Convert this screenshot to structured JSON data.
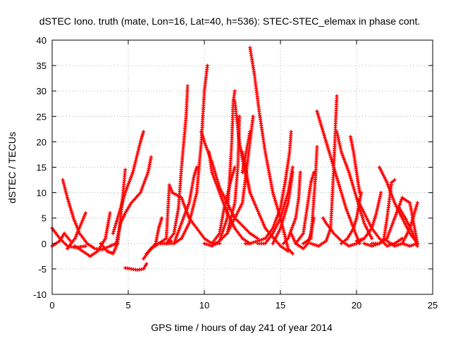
{
  "chart_data": {
    "type": "scatter",
    "title": "dSTEC Iono. truth (mate, Lon=16, Lat=40, h=536): STEC-STEC_elemax in phase cont.",
    "xlabel": "GPS time / hours of day 241 of year 2014",
    "ylabel": "dSTEC  / TECUs",
    "xlim": [
      0,
      25
    ],
    "ylim": [
      -10,
      40
    ],
    "xticks": [
      "0",
      "5",
      "10",
      "15",
      "20",
      "25"
    ],
    "yticks": [
      "-10",
      "-5",
      "0",
      "5",
      "10",
      "15",
      "20",
      "25",
      "30",
      "35",
      "40"
    ],
    "grid": true,
    "marker": "+",
    "color": "#ff0000",
    "series": [
      {
        "points": [
          [
            0.0,
            3.0
          ],
          [
            0.5,
            1.0
          ],
          [
            1.0,
            -0.5
          ],
          [
            1.5,
            -0.8
          ],
          [
            2.2,
            -0.5
          ]
        ]
      },
      {
        "points": [
          [
            0.0,
            -0.5
          ],
          [
            0.5,
            0.5
          ],
          [
            0.8,
            2.0
          ],
          [
            1.2,
            0.5
          ]
        ]
      },
      {
        "points": [
          [
            0.7,
            12.5
          ],
          [
            1.0,
            9.0
          ],
          [
            1.4,
            5.0
          ],
          [
            1.8,
            2.0
          ],
          [
            2.3,
            0.0
          ],
          [
            2.8,
            -1.0
          ],
          [
            3.3,
            -1.2
          ],
          [
            3.8,
            -0.5
          ],
          [
            4.2,
            0.0
          ]
        ]
      },
      {
        "points": [
          [
            1.0,
            -1.0
          ],
          [
            1.5,
            1.0
          ],
          [
            2.2,
            6.0
          ]
        ]
      },
      {
        "points": [
          [
            1.5,
            -0.5
          ],
          [
            2.0,
            -1.5
          ],
          [
            2.5,
            -2.5
          ],
          [
            3.0,
            -1.5
          ],
          [
            3.5,
            1.0
          ],
          [
            3.8,
            6.0
          ]
        ]
      },
      {
        "points": [
          [
            3.2,
            0.0
          ],
          [
            3.6,
            -1.5
          ],
          [
            4.0,
            -2.0
          ],
          [
            4.3,
            0.0
          ],
          [
            4.5,
            5.0
          ],
          [
            4.8,
            14.5
          ]
        ]
      },
      {
        "points": [
          [
            4.0,
            2.0
          ],
          [
            4.3,
            5.0
          ],
          [
            4.8,
            10.0
          ],
          [
            5.3,
            14.0
          ],
          [
            5.8,
            20.0
          ],
          [
            6.0,
            22.0
          ]
        ]
      },
      {
        "points": [
          [
            4.2,
            0.0
          ],
          [
            4.5,
            4.0
          ],
          [
            4.8,
            6.0
          ],
          [
            5.2,
            8.0
          ],
          [
            5.8,
            10.0
          ],
          [
            6.3,
            14.0
          ],
          [
            6.5,
            17.0
          ]
        ]
      },
      {
        "points": [
          [
            4.8,
            -4.8
          ],
          [
            5.2,
            -5.0
          ],
          [
            5.6,
            -5.2
          ],
          [
            6.0,
            -5.0
          ],
          [
            6.2,
            -4.0
          ]
        ]
      },
      {
        "points": [
          [
            6.0,
            -3.0
          ],
          [
            6.5,
            -1.0
          ],
          [
            7.0,
            0.0
          ],
          [
            7.5,
            0.0
          ],
          [
            7.8,
            0.5
          ]
        ]
      },
      {
        "points": [
          [
            6.2,
            -2.0
          ],
          [
            6.8,
            0.0
          ],
          [
            7.0,
            3.0
          ],
          [
            7.2,
            5.0
          ]
        ]
      },
      {
        "points": [
          [
            6.5,
            -1.0
          ],
          [
            7.0,
            0.0
          ],
          [
            7.5,
            1.0
          ],
          [
            7.7,
            11.5
          ],
          [
            7.9,
            10.0
          ],
          [
            8.5,
            9.0
          ],
          [
            9.0,
            5.0
          ],
          [
            10.0,
            1.0
          ],
          [
            10.5,
            0.0
          ],
          [
            11.0,
            0.0
          ]
        ]
      },
      {
        "points": [
          [
            7.0,
            0.0
          ],
          [
            7.5,
            0.0
          ],
          [
            8.0,
            2.0
          ],
          [
            8.3,
            7.0
          ],
          [
            8.5,
            15.0
          ],
          [
            8.8,
            25.0
          ],
          [
            8.9,
            31.0
          ]
        ]
      },
      {
        "points": [
          [
            7.5,
            0.0
          ],
          [
            8.0,
            0.0
          ],
          [
            8.5,
            4.0
          ],
          [
            9.0,
            8.0
          ],
          [
            9.3,
            13.0
          ],
          [
            9.5,
            15.0
          ]
        ]
      },
      {
        "points": [
          [
            8.0,
            0.0
          ],
          [
            8.5,
            1.0
          ],
          [
            9.0,
            4.0
          ],
          [
            9.5,
            10.0
          ],
          [
            9.8,
            20.0
          ],
          [
            10.0,
            30.0
          ],
          [
            10.2,
            35.0
          ]
        ]
      },
      {
        "points": [
          [
            9.8,
            22.0
          ],
          [
            10.0,
            20.0
          ],
          [
            10.5,
            16.0
          ],
          [
            11.0,
            11.0
          ],
          [
            12.0,
            5.0
          ],
          [
            13.0,
            2.0
          ],
          [
            13.5,
            1.0
          ]
        ]
      },
      {
        "points": [
          [
            10.3,
            18.0
          ],
          [
            10.5,
            14.0
          ],
          [
            11.0,
            10.0
          ],
          [
            11.5,
            6.0
          ],
          [
            12.0,
            3.0
          ],
          [
            12.5,
            1.0
          ],
          [
            13.0,
            0.0
          ]
        ]
      },
      {
        "points": [
          [
            10.0,
            0.0
          ],
          [
            10.5,
            -0.5
          ],
          [
            11.0,
            0.5
          ],
          [
            11.5,
            5.0
          ],
          [
            11.8,
            20.0
          ],
          [
            11.9,
            28.0
          ],
          [
            12.0,
            30.0
          ]
        ]
      },
      {
        "points": [
          [
            10.5,
            0.0
          ],
          [
            11.0,
            2.0
          ],
          [
            11.3,
            7.0
          ],
          [
            11.8,
            13.0
          ],
          [
            12.0,
            15.0
          ]
        ]
      },
      {
        "points": [
          [
            11.5,
            2.0
          ],
          [
            12.0,
            8.0
          ],
          [
            12.2,
            15.0
          ],
          [
            12.3,
            25.0
          ]
        ]
      },
      {
        "points": [
          [
            11.0,
            0.5
          ],
          [
            11.5,
            2.0
          ],
          [
            12.0,
            5.0
          ],
          [
            12.5,
            8.0
          ],
          [
            13.0,
            20.0
          ],
          [
            13.2,
            25.0
          ]
        ]
      },
      {
        "points": [
          [
            12.0,
            28.0
          ],
          [
            12.3,
            20.0
          ],
          [
            12.6,
            15.0
          ],
          [
            13.0,
            10.0
          ],
          [
            14.0,
            3.0
          ],
          [
            15.0,
            -0.5
          ],
          [
            15.5,
            -1.5
          ]
        ]
      },
      {
        "points": [
          [
            12.5,
            18.0
          ],
          [
            12.7,
            15.0
          ],
          [
            13.0,
            10.0
          ]
        ]
      },
      {
        "points": [
          [
            12.5,
            14.0
          ],
          [
            13.0,
            22.0
          ]
        ]
      },
      {
        "points": [
          [
            13.0,
            38.5
          ],
          [
            13.3,
            33.0
          ],
          [
            13.6,
            26.0
          ],
          [
            14.0,
            18.0
          ],
          [
            14.5,
            10.0
          ],
          [
            15.0,
            5.0
          ],
          [
            15.5,
            -1.0
          ],
          [
            15.8,
            -2.0
          ]
        ]
      },
      {
        "points": [
          [
            12.7,
            0.0
          ],
          [
            13.0,
            0.0
          ],
          [
            13.5,
            0.5
          ],
          [
            14.0,
            1.0
          ],
          [
            14.5,
            3.0
          ],
          [
            15.0,
            7.0
          ],
          [
            15.3,
            12.0
          ],
          [
            15.6,
            18.0
          ],
          [
            15.7,
            22.0
          ]
        ]
      },
      {
        "points": [
          [
            13.5,
            0.0
          ],
          [
            14.0,
            0.0
          ],
          [
            14.5,
            2.0
          ],
          [
            15.0,
            5.0
          ],
          [
            15.5,
            10.0
          ],
          [
            15.8,
            15.0
          ]
        ]
      },
      {
        "points": [
          [
            14.5,
            0.0
          ],
          [
            15.0,
            3.0
          ],
          [
            15.5,
            8.0
          ],
          [
            15.8,
            14.0
          ]
        ]
      },
      {
        "points": [
          [
            15.2,
            0.0
          ],
          [
            15.5,
            1.0
          ],
          [
            16.0,
            5.0
          ],
          [
            16.2,
            9.0
          ],
          [
            16.3,
            14.0
          ]
        ]
      },
      {
        "points": [
          [
            15.7,
            2.0
          ],
          [
            16.0,
            0.0
          ],
          [
            16.5,
            -1.0
          ],
          [
            16.8,
            0.0
          ],
          [
            17.0,
            2.0
          ],
          [
            17.2,
            5.0
          ]
        ]
      },
      {
        "points": [
          [
            16.0,
            0.0
          ],
          [
            16.5,
            2.0
          ],
          [
            16.8,
            8.0
          ],
          [
            17.0,
            12.0
          ],
          [
            17.2,
            14.0
          ]
        ]
      },
      {
        "points": [
          [
            16.5,
            0.0
          ],
          [
            17.0,
            1.0
          ],
          [
            17.3,
            13.0
          ],
          [
            17.4,
            19.0
          ]
        ]
      },
      {
        "points": [
          [
            17.4,
            26.0
          ],
          [
            17.8,
            22.0
          ],
          [
            18.2,
            18.0
          ],
          [
            18.8,
            12.0
          ],
          [
            19.3,
            7.0
          ],
          [
            19.8,
            3.0
          ],
          [
            20.2,
            0.0
          ]
        ]
      },
      {
        "points": [
          [
            17.0,
            0.0
          ],
          [
            17.5,
            -0.5
          ],
          [
            18.0,
            0.5
          ],
          [
            18.3,
            3.0
          ],
          [
            18.5,
            15.0
          ],
          [
            18.7,
            29.0
          ]
        ]
      },
      {
        "points": [
          [
            18.7,
            22.0
          ],
          [
            19.0,
            18.0
          ],
          [
            19.5,
            14.0
          ],
          [
            20.0,
            9.0
          ],
          [
            20.5,
            4.0
          ],
          [
            21.0,
            1.0
          ]
        ]
      },
      {
        "points": [
          [
            17.8,
            5.0
          ],
          [
            18.0,
            4.0
          ],
          [
            18.5,
            2.0
          ],
          [
            19.0,
            0.5
          ],
          [
            19.5,
            -0.5
          ],
          [
            20.0,
            0.0
          ],
          [
            20.5,
            1.0
          ]
        ]
      },
      {
        "points": [
          [
            19.0,
            0.0
          ],
          [
            19.4,
            1.0
          ],
          [
            19.8,
            3.0
          ],
          [
            20.0,
            5.0
          ],
          [
            20.3,
            10.0
          ]
        ]
      },
      {
        "points": [
          [
            19.6,
            21.0
          ],
          [
            19.8,
            18.0
          ],
          [
            20.0,
            14.0
          ],
          [
            20.2,
            10.0
          ]
        ]
      },
      {
        "points": [
          [
            20.0,
            0.5
          ],
          [
            20.5,
            1.0
          ],
          [
            21.0,
            3.0
          ],
          [
            21.3,
            6.0
          ],
          [
            21.6,
            10.0
          ]
        ]
      },
      {
        "points": [
          [
            20.0,
            9.0
          ],
          [
            20.5,
            6.0
          ],
          [
            21.0,
            3.0
          ],
          [
            21.5,
            1.0
          ],
          [
            22.0,
            -0.5
          ],
          [
            22.5,
            0.0
          ],
          [
            23.0,
            1.0
          ]
        ]
      },
      {
        "points": [
          [
            20.5,
            0.0
          ],
          [
            21.0,
            -0.5
          ],
          [
            21.5,
            0.0
          ],
          [
            21.8,
            1.0
          ],
          [
            22.0,
            5.0
          ],
          [
            22.3,
            12.0
          ],
          [
            22.5,
            12.5
          ]
        ]
      },
      {
        "points": [
          [
            21.5,
            15.0
          ],
          [
            22.0,
            12.0
          ],
          [
            22.5,
            8.0
          ],
          [
            23.0,
            5.0
          ],
          [
            23.5,
            2.0
          ],
          [
            24.0,
            0.0
          ]
        ]
      },
      {
        "points": [
          [
            21.0,
            0.0
          ],
          [
            21.5,
            0.0
          ],
          [
            22.0,
            1.0
          ],
          [
            22.5,
            5.0
          ],
          [
            23.0,
            9.0
          ],
          [
            23.5,
            8.0
          ],
          [
            24.0,
            0.0
          ]
        ]
      },
      {
        "points": [
          [
            22.0,
            0.5
          ],
          [
            22.5,
            -0.5
          ],
          [
            23.0,
            0.0
          ],
          [
            23.5,
            3.0
          ],
          [
            24.0,
            8.0
          ]
        ]
      },
      {
        "points": [
          [
            23.0,
            0.0
          ],
          [
            23.5,
            -0.5
          ],
          [
            24.0,
            0.0
          ]
        ]
      },
      {
        "points": [
          [
            22.8,
            7.0
          ],
          [
            23.2,
            5.0
          ],
          [
            23.7,
            2.0
          ],
          [
            24.0,
            -0.5
          ]
        ]
      }
    ]
  }
}
